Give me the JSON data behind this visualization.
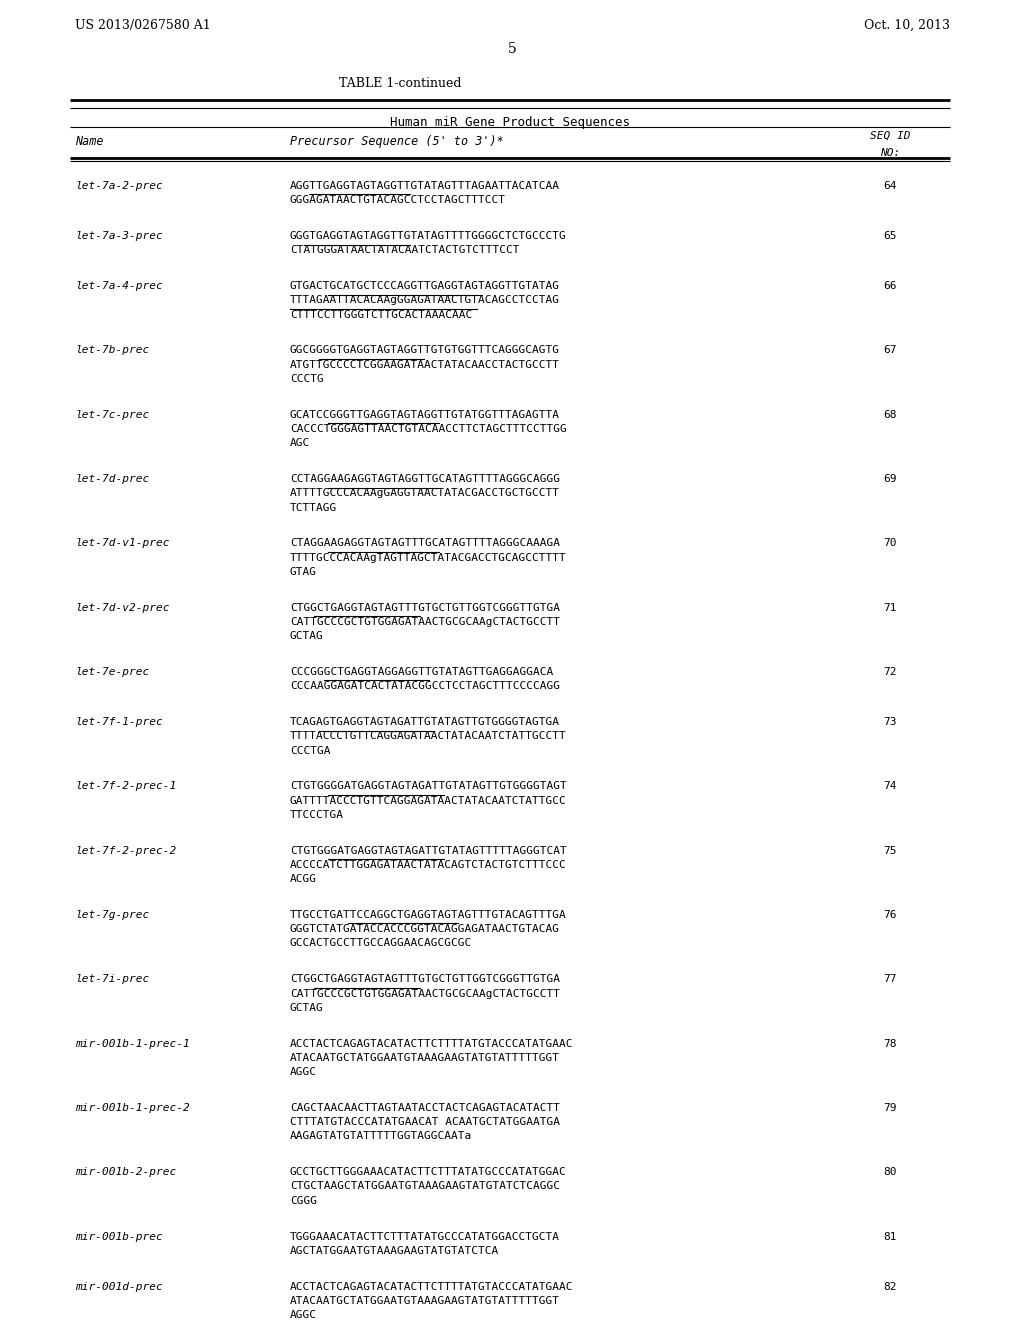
{
  "header_left": "US 2013/0267580 A1",
  "header_right": "Oct. 10, 2013",
  "page_number": "5",
  "table_title": "TABLE 1-continued",
  "table_subtitle": "Human miR Gene Product Sequences",
  "col_headers": [
    "Name",
    "Precursor Sequence (5' to 3')*",
    "SEQ ID\nNO:"
  ],
  "rows": [
    {
      "name": "let-7a-2-prec",
      "sequence": "AGGTTGAGGTAGTAGGTTGTATAGTTTAGAATTACATCAA\nGGGAGATAACTGTACAGCCTCCTAGCTTTCCT",
      "seq_id": "64",
      "underline_part": "TGAGGTAGTAGGTTGTATAGT"
    },
    {
      "name": "let-7a-3-prec",
      "sequence": "GGGTGAGGTAGTAGGTTGTATAGTTTTGGGGCTCTGCCCTG\nCTATGGGATAACTATACAATCTACTGTCTTTCCT",
      "seq_id": "65",
      "underline_part": "TGAGGTAGTAGGTTGTATAGTT"
    },
    {
      "name": "let-7a-4-prec",
      "sequence": "GTGACTGCATGCTCCCAGGTTGAGGTAGTAGGTTGTATAG\nTTTAGAATTACACAAgGGAGATAACTGTACAGCCTCCTAG\nCTTTCCTTGGGTCTTGCACTAAACAAC",
      "seq_id": "66",
      "underline_part": "TGAGGTAGTAGGTTGTATAG\nTTTAGAATTACACAAgGGAGATAACTGTACAGCCTCCTAG"
    },
    {
      "name": "let-7b-prec",
      "sequence": "GGCGGGGTGAGGTAGTAGGTTGTGTGGTTTCAGGGCAGTG\nATGTTGCCCCTCGGAAGATAACTATACAACCTACTGCCTT\nCCCTG",
      "seq_id": "67",
      "underline_part": "TGAGGTAGTAGGTTGTGTGGTT"
    },
    {
      "name": "let-7c-prec",
      "sequence": "GCATCCGGGTTGAGGTAGTAGGTTGTATGGTTTAGAGTTA\nCACCCTGGGAGTTAACTGTACAACCTTCTAGCTTTCCTTGG\nAGC",
      "seq_id": "68",
      "underline_part": "TGAGGTAGTAGGTTGTATGGTTT"
    },
    {
      "name": "let-7d-prec",
      "sequence": "CCTAGGAAGAGGTAGTAGGTTGCATAGTTTTAGGGCAGGG\nATTTTGCCCACAAgGAGGTAACTATACGACCTGCTGCCTT\nTCTTAGG",
      "seq_id": "69",
      "underline_part": "TGAGGTAGTAGGTTGCATAGTTT"
    },
    {
      "name": "let-7d-v1-prec",
      "sequence": "CTAGGAAGAGGTAGTAGTTTGCATAGTTTTAGGGCAAAGA\nTTTTGCCCACAAgTAGTTAGCTATACGACCTGCAGCCTTTT\nGTAG",
      "seq_id": "70",
      "underline_part": "TGAGGTAGTAGTTTGCATAGTTT"
    },
    {
      "name": "let-7d-v2-prec",
      "sequence": "CTGGCTGAGGTAGTAGTTTGTGCTGTTGGTCGGGTTGTGA\nCATTGCCCGCTGTGGAGATAACTGCGCAAgCTACTGCCTT\nGCTAG",
      "seq_id": "71",
      "underline_part": "TGAGGTAGTAGTTTGTGCTGTT"
    },
    {
      "name": "let-7e-prec",
      "sequence": "CCCGGGCTGAGGTAGGAGGTTGTATAGTTGAGGAGGACA\nCCCAAGGAGATCACTATACGGCCTCCTAGCTTTCCCCAGG",
      "seq_id": "72",
      "underline_part": "TGAGGTAGGAGGTTGTATAGTT"
    },
    {
      "name": "let-7f-1-prec",
      "sequence": "TCAGAGTGAGGTAGTAGATTGTATAGTTGTGGGGTAGTGA\nTTTTACCCTGTTCAGGAGATAACTATACAATCTATTGCCTT\nCCCTGA",
      "seq_id": "73",
      "underline_part": "TGAGGTAGTAGATTGTATAGTTGT"
    },
    {
      "name": "let-7f-2-prec-1",
      "sequence": "CTGTGGGGATGAGGTAGTAGATTGTATAGTTGTGGGGTAGT\nGATTTTACCCTGTTCAGGAGATAACTATACAATCTATTGCC\nTTCCCTGA",
      "seq_id": "74",
      "underline_part": "TGAGGTAGTAGATTGTATAGTTGT"
    },
    {
      "name": "let-7f-2-prec-2",
      "sequence": "CTGTGGGATGAGGTAGTAGATTGTATAGTTTTTAGGGTCAT\nACCCCATCTTGGAGATAACTATACAGTCTACTGTCTTTCCC\nACGG",
      "seq_id": "75",
      "underline_part": "TGAGGTAGTAGATTGTATAGTTTT"
    },
    {
      "name": "let-7g-prec",
      "sequence": "TTGCCTGATTCCAGGCTGAGGTAGTAGTTTGTACAGTTTGA\nGGGTCTATGATACCACCCGGTACAGGAGATAACTGTACAG\nGCCACTGCCTTGCCAGGAACAGCGCGC",
      "seq_id": "76",
      "underline_part": "TGAGGTAGTAGTTTGTACAGTTT"
    },
    {
      "name": "let-7i-prec",
      "sequence": "CTGGCTGAGGTAGTAGTTTGTGCTGTTGGTCGGGTTGTGA\nCATTGCCCGCTGTGGAGATAACTGCGCAAgCTACTGCCTT\nGCTAG",
      "seq_id": "77",
      "underline_part": "TGAGGTAGTAGTTTGTGCTGTT"
    },
    {
      "name": "mir-001b-1-prec-1",
      "sequence": "ACCTACTCAGAGTACATACTTCTTTTATGTACCCATATGAAC\nATACAATGCTATGGAATGTAAAGAAGTATGTATTTTTGGT\nAGGC",
      "seq_id": "78",
      "underline_part": "TATGGAATGTAAAGAAGTATGTATT"
    },
    {
      "name": "mir-001b-1-prec-2",
      "sequence": "CAGCTAACAACTTAGTAATACCTACTCAGAGTACATACTT\nCTTTATGTACCCATATGAACAT ACAATGCTATGGAATGA\nAAGAGTATGTATTTTTGGTAGGCAATa",
      "seq_id": "79",
      "underline_part": "TATGGAATGA\nAAGAGTATGTATTTTTGGTAGGCAATa"
    },
    {
      "name": "mir-001b-2-prec",
      "sequence": "GCCTGCTTGGGAAACATACTTCTTTATATGCCCATATGGAC\nCTGCTAAGCTATGGAATGTAAAGAAGTATGTATCTCAGGC\nCGGG",
      "seq_id": "80",
      "underline_part": "TATGGAATGTAAAGAAGTATGTAT"
    },
    {
      "name": "mir-001b-prec",
      "sequence": "TGGGAAACATACTTCTTTATATGCCCATATGGACCTGCTA\nAGCTATGGAATGTAAAGAAGTATGTATCTCA",
      "seq_id": "81",
      "underline_part": "TATGGAATGTAAAGAAGTATGTAT"
    },
    {
      "name": "mir-001d-prec",
      "sequence": "ACCTACTCAGAGTACATACTTCTTTTATGTACCCATATGAAC\nATACAATGCTATGGAATGTAAAGAAGTATGTATTTTTGGT\nAGGC",
      "seq_id": "82",
      "underline_part": "TATGGAATGTAAAGAAGTATGTATTT"
    }
  ],
  "bg_color": "#ffffff",
  "text_color": "#000000",
  "font_size": 8.5,
  "font_family": "monospace"
}
